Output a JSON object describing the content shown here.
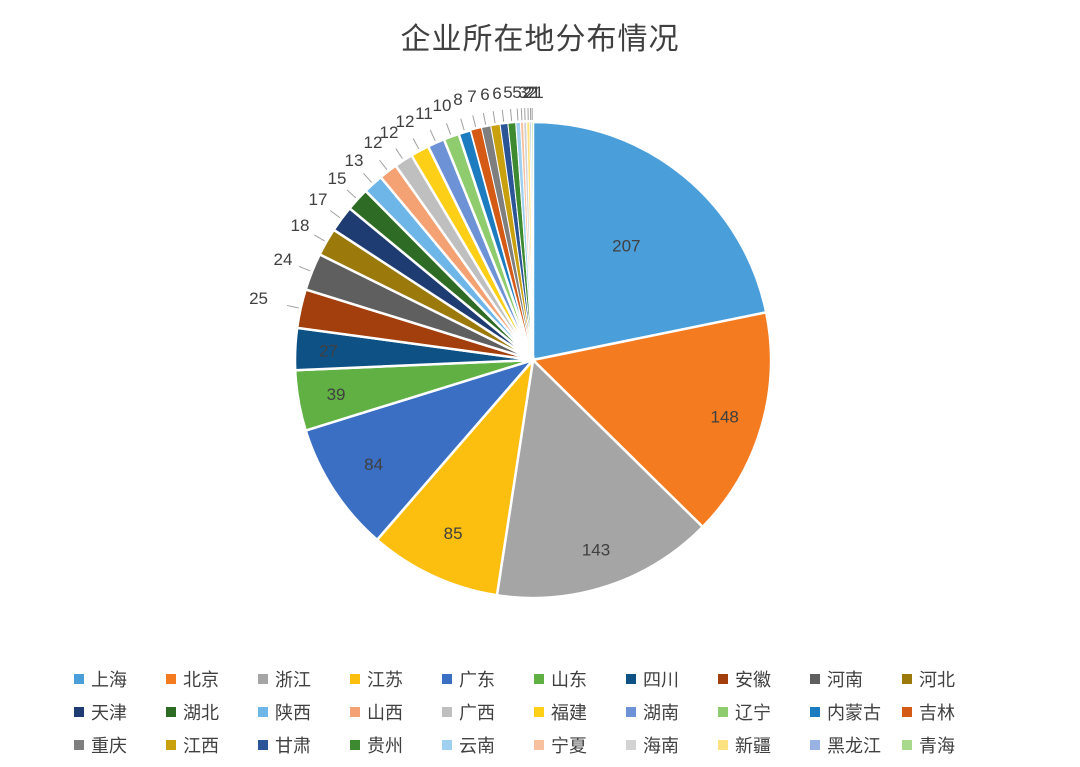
{
  "chart_data": {
    "type": "pie",
    "title": "企业所在地分布情况",
    "legend_position": "bottom",
    "slices": [
      {
        "label": "上海",
        "value": 207,
        "color": "#4a9fdb"
      },
      {
        "label": "北京",
        "value": 148,
        "color": "#f47b20"
      },
      {
        "label": "浙江",
        "value": 143,
        "color": "#a5a5a5"
      },
      {
        "label": "江苏",
        "value": 85,
        "color": "#fdbf0f"
      },
      {
        "label": "广东",
        "value": 84,
        "color": "#3a6fc4"
      },
      {
        "label": "山东",
        "value": 39,
        "color": "#61b044"
      },
      {
        "label": "四川",
        "value": 27,
        "color": "#0d5185"
      },
      {
        "label": "安徽",
        "value": 25,
        "color": "#a33e0d"
      },
      {
        "label": "河南",
        "value": 24,
        "color": "#5f5f5f"
      },
      {
        "label": "河北",
        "value": 18,
        "color": "#9b7a0b"
      },
      {
        "label": "天津",
        "value": 17,
        "color": "#1e3c72"
      },
      {
        "label": "湖北",
        "value": 15,
        "color": "#2e6b25"
      },
      {
        "label": "陕西",
        "value": 13,
        "color": "#6eb5e8"
      },
      {
        "label": "山西",
        "value": 12,
        "color": "#f4a173"
      },
      {
        "label": "广西",
        "value": 12,
        "color": "#bfbfbf"
      },
      {
        "label": "福建",
        "value": 12,
        "color": "#fdd017"
      },
      {
        "label": "湖南",
        "value": 11,
        "color": "#6d93d6"
      },
      {
        "label": "辽宁",
        "value": 10,
        "color": "#8fcc6d"
      },
      {
        "label": "内蒙古",
        "value": 8,
        "color": "#1d7bbf"
      },
      {
        "label": "吉林",
        "value": 7,
        "color": "#d45a15"
      },
      {
        "label": "重庆",
        "value": 6,
        "color": "#7f7f7f"
      },
      {
        "label": "江西",
        "value": 6,
        "color": "#c9a00d"
      },
      {
        "label": "甘肃",
        "value": 5,
        "color": "#2b5596"
      },
      {
        "label": "贵州",
        "value": 5,
        "color": "#3e8a31"
      },
      {
        "label": "云南",
        "value": 3,
        "color": "#9fd0f0"
      },
      {
        "label": "宁夏",
        "value": 2,
        "color": "#f7c09f"
      },
      {
        "label": "海南",
        "value": 2,
        "color": "#d3d3d3"
      },
      {
        "label": "新疆",
        "value": 2,
        "color": "#fee280"
      },
      {
        "label": "黑龙江",
        "value": 1,
        "color": "#98b3e3"
      },
      {
        "label": "青海",
        "value": 1,
        "color": "#a9d98d"
      }
    ]
  }
}
